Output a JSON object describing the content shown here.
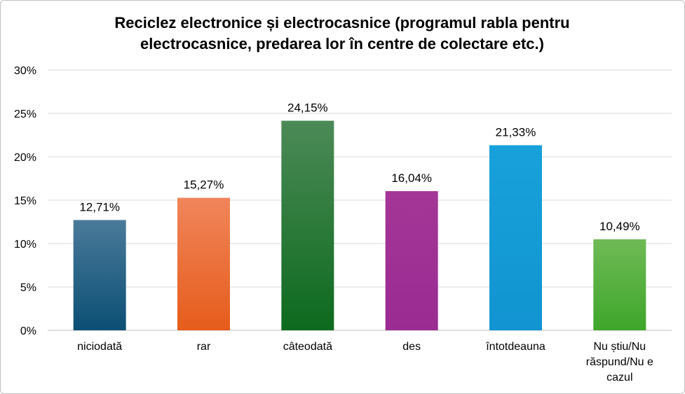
{
  "chart_data": {
    "type": "bar",
    "title_lines": [
      "Reciclez electronice și electrocasnice (programul rabla pentru",
      "electrocasnice, predarea lor în centre de colectare etc.)"
    ],
    "categories": [
      [
        "niciodată"
      ],
      [
        "rar"
      ],
      [
        "câteodată"
      ],
      [
        "des"
      ],
      [
        "întotdeauna"
      ],
      [
        "Nu știu/Nu",
        "răspund/Nu e",
        "cazul"
      ]
    ],
    "values": [
      12.71,
      15.27,
      24.15,
      16.04,
      21.33,
      10.49
    ],
    "data_labels": [
      "12,71%",
      "15,27%",
      "24,15%",
      "16,04%",
      "21,33%",
      "10,49%"
    ],
    "ylim": [
      0,
      30
    ],
    "yticks": [
      0,
      5,
      10,
      15,
      20,
      25,
      30
    ],
    "ytick_labels": [
      "0%",
      "5%",
      "10%",
      "15%",
      "20%",
      "25%",
      "30%"
    ],
    "grid": true,
    "legend": "none",
    "bar_colors": [
      [
        "#4a7a9a",
        "#0b4f74"
      ],
      [
        "#f0855a",
        "#e65c1b"
      ],
      [
        "#4c8a57",
        "#0d6a1e"
      ],
      [
        "#a43697",
        "#9a2b92"
      ],
      [
        "#18a1da",
        "#1194d1"
      ],
      [
        "#6fba55",
        "#3ea62b"
      ]
    ],
    "grid_color": "#d9d9d9",
    "axis_color": "#bfbfbf"
  }
}
